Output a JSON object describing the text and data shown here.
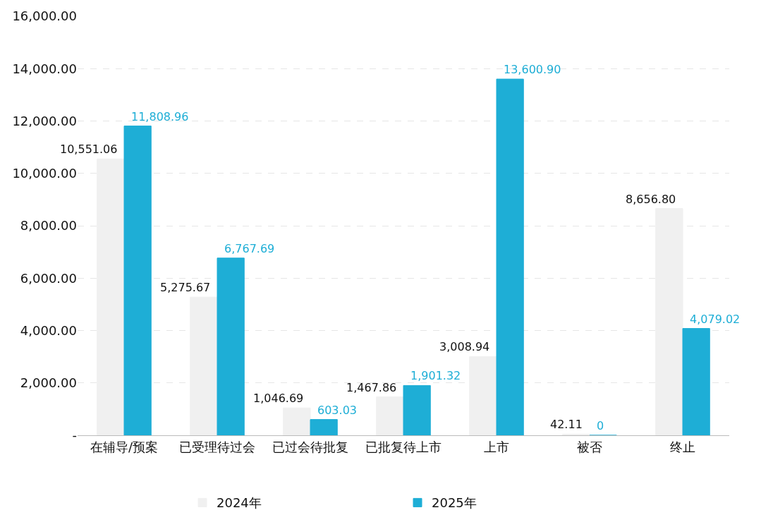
{
  "chart_data": {
    "type": "bar",
    "categories": [
      "在辅导/预案",
      "已受理待过会",
      "已过会待批复",
      "已批复待上市",
      "上市",
      "被否",
      "终止"
    ],
    "series": [
      {
        "name": "2024年",
        "color": "#f0f0f0",
        "values": [
          10551.06,
          5275.67,
          1046.69,
          1467.86,
          3008.94,
          42.11,
          8656.8
        ],
        "value_labels": [
          "10,551.06",
          "5,275.67",
          "1,046.69",
          "1,467.86",
          "3,008.94",
          "42.11",
          "8,656.80"
        ]
      },
      {
        "name": "2025年",
        "color": "#1eaed6",
        "values": [
          11808.96,
          6767.69,
          603.03,
          1901.32,
          13600.9,
          0,
          4079.02
        ],
        "value_labels": [
          "11,808.96",
          "6,767.69",
          "603.03",
          "1,901.32",
          "13,600.90",
          "0",
          "4,079.02"
        ]
      }
    ],
    "ylim": [
      0,
      16000
    ],
    "yticks": [
      {
        "value": 0,
        "label": "-"
      },
      {
        "value": 2000,
        "label": "2,000.00"
      },
      {
        "value": 4000,
        "label": "4,000.00"
      },
      {
        "value": 6000,
        "label": "6,000.00"
      },
      {
        "value": 8000,
        "label": "8,000.00"
      },
      {
        "value": 10000,
        "label": "10,000.00"
      },
      {
        "value": 12000,
        "label": "12,000.00"
      },
      {
        "value": 14000,
        "label": "14,000.00"
      },
      {
        "value": 16000,
        "label": "16,000.00"
      }
    ],
    "grid": "y",
    "legend": "bottom"
  }
}
